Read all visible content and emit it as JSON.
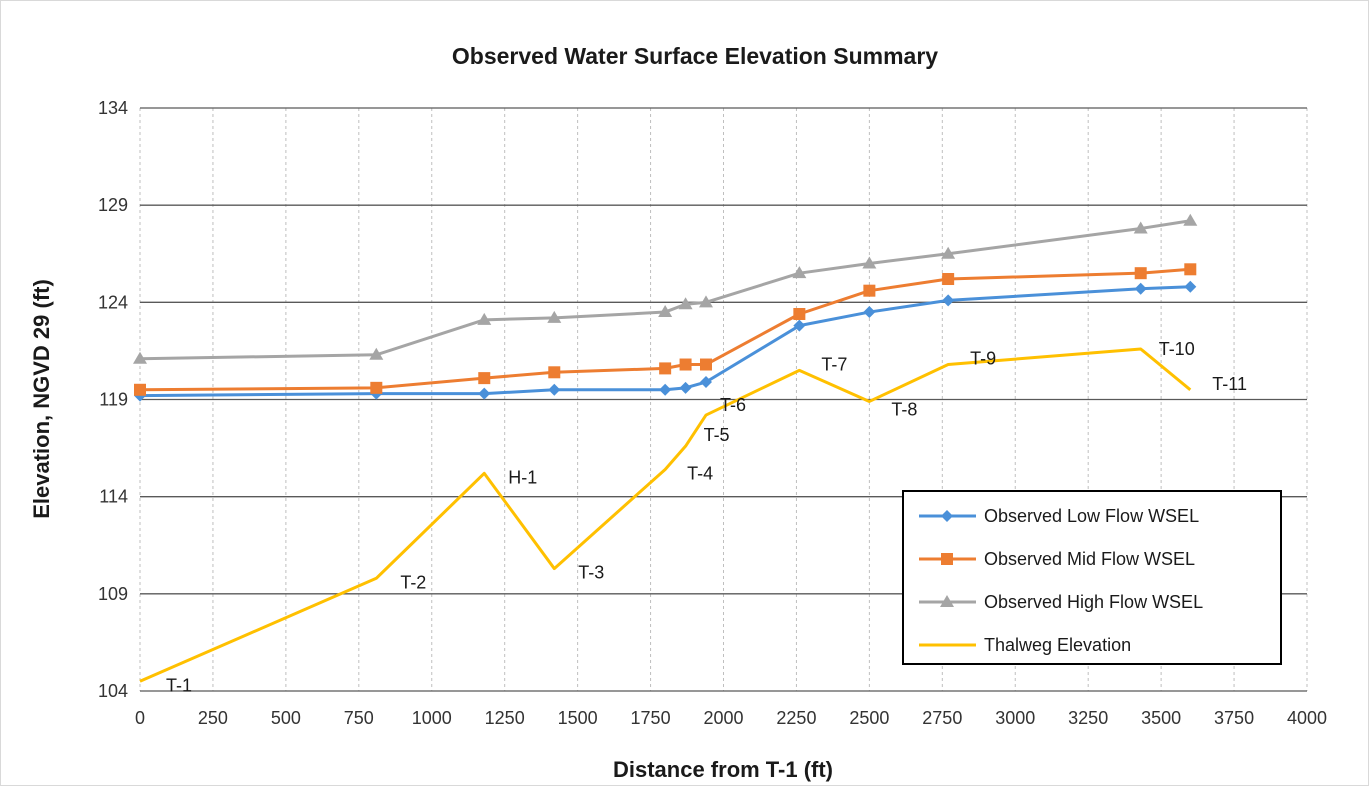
{
  "chart_data": {
    "type": "line",
    "title": "Observed Water Surface Elevation Summary",
    "xlabel": "Distance from T-1 (ft)",
    "ylabel": "Elevation, NGVD 29 (ft)",
    "xlim": [
      0,
      4000
    ],
    "ylim": [
      104,
      134
    ],
    "xticks": [
      0,
      250,
      500,
      750,
      1000,
      1250,
      1500,
      1750,
      2000,
      2250,
      2500,
      2750,
      3000,
      3250,
      3500,
      3750,
      4000
    ],
    "yticks": [
      104,
      109,
      114,
      119,
      124,
      129,
      134
    ],
    "grid": {
      "horizontal": "solid",
      "vertical": "dashed"
    },
    "legend_position": "bottom-right",
    "series": [
      {
        "name": "Observed Low Flow WSEL",
        "color": "#4a90d9",
        "marker": "diamond",
        "x": [
          0,
          810,
          1180,
          1420,
          1800,
          1870,
          1940,
          2260,
          2500,
          2770,
          3430,
          3600
        ],
        "y": [
          119.2,
          119.3,
          119.3,
          119.5,
          119.5,
          119.6,
          119.9,
          122.8,
          123.5,
          124.1,
          124.7,
          124.8
        ]
      },
      {
        "name": "Observed Mid Flow WSEL",
        "color": "#ed7d31",
        "marker": "square",
        "x": [
          0,
          810,
          1180,
          1420,
          1800,
          1870,
          1940,
          2260,
          2500,
          2770,
          3430,
          3600
        ],
        "y": [
          119.5,
          119.6,
          120.1,
          120.4,
          120.6,
          120.8,
          120.8,
          123.4,
          124.6,
          125.2,
          125.5,
          125.7
        ]
      },
      {
        "name": "Observed High Flow WSEL",
        "color": "#a5a5a5",
        "marker": "triangle",
        "x": [
          0,
          810,
          1180,
          1420,
          1800,
          1870,
          1940,
          2260,
          2500,
          2770,
          3430,
          3600
        ],
        "y": [
          121.1,
          121.3,
          123.1,
          123.2,
          123.5,
          123.9,
          124.0,
          125.5,
          126.0,
          126.5,
          127.8,
          128.2
        ]
      },
      {
        "name": "Thalweg Elevation",
        "color": "#ffc000",
        "marker": "none",
        "x": [
          0,
          810,
          1180,
          1420,
          1800,
          1870,
          1940,
          2260,
          2500,
          2770,
          3430,
          3600
        ],
        "y": [
          104.5,
          109.8,
          115.2,
          110.3,
          115.4,
          116.6,
          118.2,
          120.5,
          118.9,
          120.8,
          121.6,
          119.5
        ],
        "point_labels": [
          "T-1",
          "T-2",
          "H-1",
          "T-3",
          "T-4",
          "T-5",
          "T-6",
          "T-7",
          "T-8",
          "T-9",
          "T-10",
          "T-11"
        ]
      }
    ]
  }
}
